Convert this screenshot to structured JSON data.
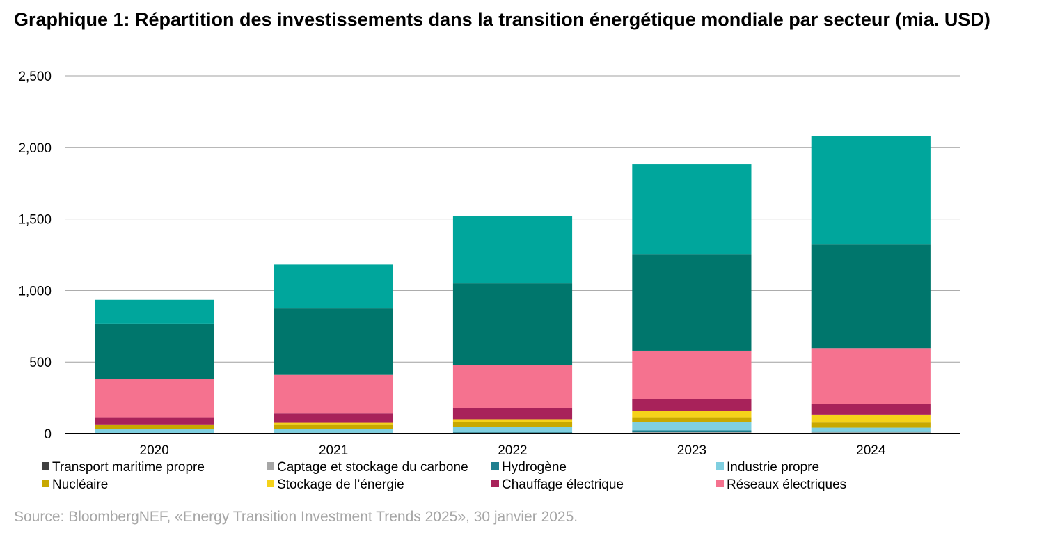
{
  "title": "Graphique 1: Répartition des investissements dans la transition énergétique mondiale par secteur (mia. USD)",
  "source": "Source: BloombergNEF, «Energy Transition Investment Trends 2025», 30 janvier 2025.",
  "chart_data": {
    "type": "bar",
    "stacked": true,
    "categories": [
      "2020",
      "2021",
      "2022",
      "2023",
      "2024"
    ],
    "ylim": [
      0,
      2500
    ],
    "yticks": [
      "0",
      "500",
      "1,000",
      "1,500",
      "2,000",
      "2,500"
    ],
    "ytick_values": [
      0,
      500,
      1000,
      1500,
      2000,
      2500
    ],
    "grid": true,
    "legend_position": "bottom",
    "series": [
      {
        "name": "Transport maritime propre",
        "color": "#404040",
        "values": [
          1,
          1,
          2,
          5,
          3
        ]
      },
      {
        "name": "Captage et stockage du carbone",
        "color": "#a6a6a6",
        "values": [
          3,
          3,
          4,
          7,
          6
        ]
      },
      {
        "name": "Hydrogène",
        "color": "#1f7f8f",
        "values": [
          1,
          2,
          4,
          10,
          7
        ]
      },
      {
        "name": "Industrie propre",
        "color": "#7fcfe0",
        "values": [
          24,
          27,
          35,
          60,
          25
        ]
      },
      {
        "name": "Nucléaire",
        "color": "#c8a800",
        "values": [
          30,
          32,
          35,
          32,
          36
        ]
      },
      {
        "name": "Stockage de l’énergie",
        "color": "#f5d21a",
        "values": [
          5,
          10,
          20,
          45,
          55
        ]
      },
      {
        "name": "Chauffage électrique",
        "color": "#a8225a",
        "values": [
          50,
          65,
          80,
          80,
          75
        ]
      },
      {
        "name": "Réseaux électriques",
        "color": "#f5728f",
        "values": [
          270,
          270,
          300,
          340,
          390
        ]
      },
      {
        "name": "",
        "color": "#00766c",
        "values": [
          385,
          465,
          570,
          675,
          725
        ]
      },
      {
        "name": "",
        "color": "#00a69c",
        "values": [
          166,
          305,
          468,
          628,
          758
        ]
      }
    ]
  }
}
